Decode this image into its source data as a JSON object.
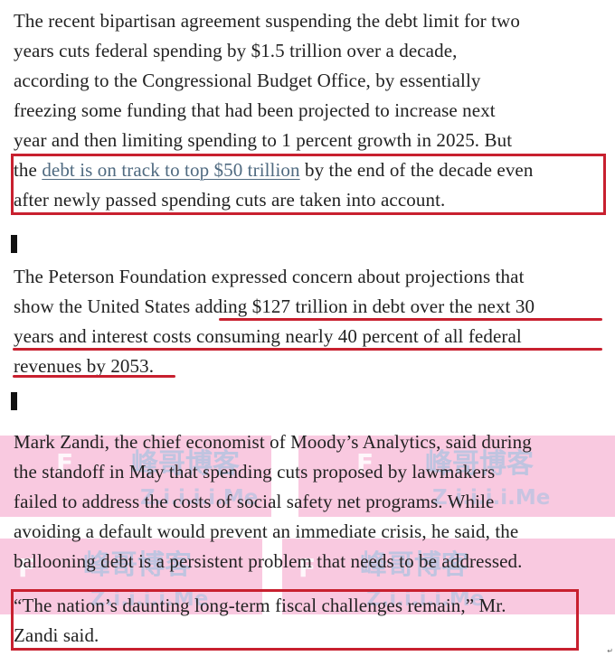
{
  "article": {
    "p1": {
      "line1": "The recent bipartisan agreement suspending the debt limit for two",
      "line2": "years cuts federal spending by $1.5 trillion over a decade,",
      "line3": "according to the Congressional Budget Office, by essentially",
      "line4": "freezing some funding that had been projected to increase next",
      "line5": "year and then limiting spending to 1 percent growth in 2025. But",
      "line6_before": "the ",
      "line6_link": "debt is on track to top $50 trillion",
      "line6_after": " by the end of the decade even",
      "line7": "after newly passed spending cuts are taken into account."
    },
    "p2": {
      "line1": "The Peterson Foundation expressed concern about projections that",
      "line2": "show the United States adding $127 trillion in debt over the next 30",
      "line3": "years and interest costs consuming nearly 40 percent of all federal",
      "line4": "revenues by 2053."
    },
    "p3": {
      "line1": "Mark Zandi, the chief economist of Moody’s Analytics, said during",
      "line2": "the standoff in May that spending cuts proposed by lawmakers",
      "line3": "failed to address the costs of social safety net programs. While",
      "line4": "avoiding a default would prevent an immediate crisis, he said, the",
      "line5": "ballooning debt is a persistent problem that needs to be addressed."
    },
    "p4": {
      "line1": "“The nation’s daunting long-term fiscal challenges remain,” Mr.",
      "line2": "Zandi said."
    }
  },
  "watermark": {
    "brand": "峰哥博客",
    "site": "Z.i.i.i.i.Me",
    "logo_letter": "F"
  },
  "colors": {
    "highlight": "#c8202f",
    "link": "#4f6a80",
    "text": "#222222",
    "watermark_pink": "#f17eb6",
    "watermark_blue": "#78bee1"
  }
}
